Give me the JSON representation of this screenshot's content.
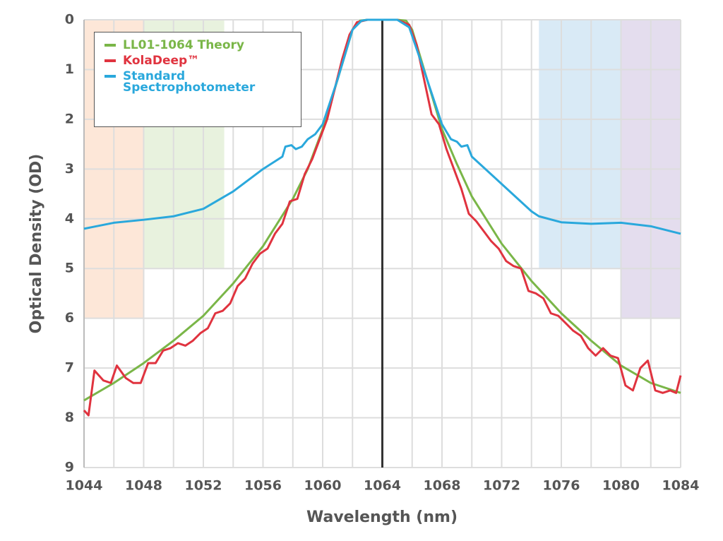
{
  "chart_data": {
    "type": "line",
    "xlabel": "Wavelength (nm)",
    "ylabel": "Optical Density (OD)",
    "xlim": [
      1044,
      1084
    ],
    "ylim": [
      9,
      0
    ],
    "xticks": [
      1044,
      1048,
      1052,
      1056,
      1060,
      1064,
      1068,
      1072,
      1076,
      1080,
      1084
    ],
    "xgrid": [
      1044,
      1046,
      1048,
      1050,
      1052,
      1054,
      1056,
      1058,
      1060,
      1062,
      1064,
      1066,
      1068,
      1070,
      1072,
      1074,
      1076,
      1078,
      1080,
      1082,
      1084
    ],
    "yticks": [
      0,
      1,
      2,
      3,
      4,
      5,
      6,
      7,
      8,
      9
    ],
    "grid": true,
    "legend": "upper left",
    "vline": {
      "x": 1064,
      "color": "#333333"
    },
    "bands": [
      {
        "x": [
          1044,
          1048
        ],
        "y": [
          0,
          6
        ],
        "color": "#fde7d8"
      },
      {
        "x": [
          1048,
          1053.4
        ],
        "y": [
          0,
          5
        ],
        "color": "#e8f2de"
      },
      {
        "x": [
          1074.5,
          1080
        ],
        "y": [
          0,
          5
        ],
        "color": "#d9eaf6"
      },
      {
        "x": [
          1080,
          1084
        ],
        "y": [
          0,
          6
        ],
        "color": "#e4ddee"
      }
    ],
    "series": [
      {
        "name": "LL01-1064 Theory",
        "color": "#7ab648",
        "x": [
          1044,
          1046,
          1048,
          1050,
          1052,
          1054,
          1056,
          1058,
          1059,
          1060,
          1061,
          1062,
          1062.5,
          1063,
          1065,
          1065.6,
          1066,
          1067,
          1068,
          1069,
          1070,
          1072,
          1074,
          1076,
          1078,
          1080,
          1082,
          1084
        ],
        "values": [
          7.65,
          7.3,
          6.9,
          6.45,
          5.95,
          5.3,
          4.55,
          3.6,
          3.0,
          2.2,
          1.2,
          0.2,
          0.02,
          0,
          0,
          0.02,
          0.2,
          1.2,
          2.2,
          2.9,
          3.55,
          4.5,
          5.25,
          5.9,
          6.45,
          6.95,
          7.3,
          7.5
        ]
      },
      {
        "name": "KolaDeep™",
        "color": "#e0333f",
        "x": [
          1044,
          1044.3,
          1044.7,
          1045.3,
          1045.8,
          1046.2,
          1046.8,
          1047.3,
          1047.8,
          1048.3,
          1048.8,
          1049.3,
          1049.8,
          1050.3,
          1050.8,
          1051.3,
          1051.8,
          1052.3,
          1052.8,
          1053.3,
          1053.8,
          1054.3,
          1054.8,
          1055.3,
          1055.8,
          1056.3,
          1056.8,
          1057.3,
          1057.8,
          1058.3,
          1058.8,
          1059.3,
          1059.8,
          1060.3,
          1060.8,
          1061.3,
          1061.8,
          1062.3,
          1063,
          1065,
          1065.8,
          1066.3,
          1066.8,
          1067.3,
          1067.8,
          1068.3,
          1068.8,
          1069.3,
          1069.8,
          1070.3,
          1070.8,
          1071.3,
          1071.8,
          1072.3,
          1072.8,
          1073.3,
          1073.8,
          1074.3,
          1074.8,
          1075.3,
          1075.8,
          1076.3,
          1076.8,
          1077.3,
          1077.8,
          1078.3,
          1078.8,
          1079.3,
          1079.8,
          1080.3,
          1080.8,
          1081.3,
          1081.8,
          1082.3,
          1082.8,
          1083.3,
          1083.7,
          1084
        ],
        "values": [
          7.85,
          7.95,
          7.05,
          7.25,
          7.3,
          6.95,
          7.2,
          7.3,
          7.3,
          6.9,
          6.9,
          6.65,
          6.6,
          6.5,
          6.55,
          6.45,
          6.3,
          6.2,
          5.9,
          5.85,
          5.7,
          5.35,
          5.2,
          4.9,
          4.7,
          4.6,
          4.3,
          4.1,
          3.65,
          3.6,
          3.1,
          2.8,
          2.4,
          2.0,
          1.4,
          0.8,
          0.3,
          0.05,
          0,
          0,
          0.1,
          0.5,
          1.2,
          1.9,
          2.1,
          2.6,
          3.0,
          3.4,
          3.9,
          4.05,
          4.25,
          4.45,
          4.6,
          4.85,
          4.95,
          5.0,
          5.45,
          5.5,
          5.6,
          5.9,
          5.95,
          6.1,
          6.25,
          6.35,
          6.6,
          6.75,
          6.6,
          6.75,
          6.8,
          7.35,
          7.45,
          7.0,
          6.85,
          7.45,
          7.5,
          7.45,
          7.5,
          7.15
        ]
      },
      {
        "name": "Standard Spectrophotometer",
        "color": "#2aa8dc",
        "x": [
          1044,
          1046,
          1048,
          1050,
          1052,
          1054,
          1056,
          1057.3,
          1057.5,
          1057.9,
          1058.2,
          1058.6,
          1059,
          1059.5,
          1060,
          1061,
          1062,
          1062.6,
          1063,
          1065,
          1065.8,
          1067,
          1068,
          1068.6,
          1069,
          1069.3,
          1069.7,
          1070,
          1072,
          1074,
          1074.5,
          1076,
          1078,
          1080,
          1082,
          1084
        ],
        "values": [
          4.2,
          4.08,
          4.02,
          3.95,
          3.8,
          3.45,
          3.0,
          2.75,
          2.55,
          2.52,
          2.6,
          2.55,
          2.4,
          2.3,
          2.1,
          1.2,
          0.2,
          0.02,
          0,
          0,
          0.15,
          1.2,
          2.1,
          2.4,
          2.45,
          2.55,
          2.52,
          2.75,
          3.3,
          3.85,
          3.95,
          4.07,
          4.1,
          4.08,
          4.15,
          4.3
        ]
      }
    ]
  }
}
